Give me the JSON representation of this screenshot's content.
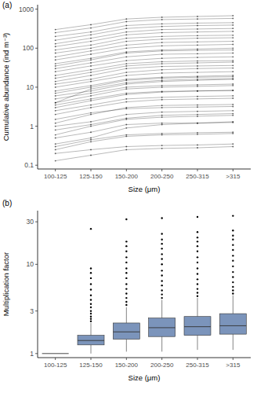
{
  "chart_data": [
    {
      "type": "line",
      "panel_label": "(a)",
      "x_label": "Size (μm)",
      "y_label": "Cumulative abundance (ind m⁻³)",
      "categories": [
        "100-125",
        "125-150",
        "150-200",
        "200-250",
        "250-315",
        ">315"
      ],
      "log": "y",
      "ylim": [
        0.08,
        1300
      ],
      "yticks": [
        0.1,
        1,
        10,
        100,
        1000
      ],
      "color": "#000000",
      "marker": "circle",
      "grid": false,
      "series": [
        {
          "values": [
            0.13,
            0.18,
            0.25,
            0.27,
            0.28,
            0.3
          ]
        },
        {
          "values": [
            0.2,
            0.25,
            0.3,
            0.32,
            0.33,
            0.35
          ]
        },
        {
          "values": [
            0.25,
            0.4,
            0.55,
            0.6,
            0.62,
            0.65
          ]
        },
        {
          "values": [
            0.3,
            0.45,
            0.6,
            0.65,
            0.68,
            0.7
          ]
        },
        {
          "values": [
            0.35,
            0.5,
            0.9,
            1.1,
            1.2,
            1.3
          ]
        },
        {
          "values": [
            0.5,
            0.7,
            1.1,
            1.2,
            1.2,
            1.25
          ]
        },
        {
          "values": [
            0.6,
            1.0,
            1.5,
            1.7,
            1.8,
            1.9
          ]
        },
        {
          "values": [
            0.8,
            1.1,
            1.6,
            1.9,
            2.0,
            2.1
          ]
        },
        {
          "values": [
            1.0,
            1.3,
            2.0,
            2.3,
            2.4,
            2.5
          ]
        },
        {
          "values": [
            1.2,
            2.0,
            3.0,
            3.4,
            3.5,
            3.6
          ]
        },
        {
          "values": [
            1.5,
            2.2,
            2.8,
            3.0,
            3.1,
            3.2
          ]
        },
        {
          "values": [
            2,
            3,
            4.2,
            4.8,
            5,
            5.2
          ]
        },
        {
          "values": [
            2.5,
            3.5,
            5,
            5.5,
            5.8,
            6
          ]
        },
        {
          "values": [
            3,
            4.5,
            6.5,
            7.5,
            8,
            8.3
          ]
        },
        {
          "values": [
            3.5,
            5,
            7,
            7.8,
            8,
            8.2
          ]
        },
        {
          "values": [
            4,
            6,
            9,
            10,
            10.5,
            11
          ]
        },
        {
          "values": [
            4,
            9,
            13,
            15,
            16,
            16.5
          ]
        },
        {
          "values": [
            5,
            7,
            10,
            11,
            11.5,
            12
          ]
        },
        {
          "values": [
            6,
            8,
            12,
            14,
            15,
            16
          ]
        },
        {
          "values": [
            7,
            10,
            15,
            17,
            18,
            18.5
          ]
        },
        {
          "values": [
            8,
            11,
            16,
            18,
            19,
            20
          ]
        },
        {
          "values": [
            10,
            14,
            20,
            23,
            24,
            25
          ]
        },
        {
          "values": [
            12,
            16,
            24,
            28,
            30,
            31
          ]
        },
        {
          "values": [
            14,
            20,
            30,
            34,
            35,
            36
          ]
        },
        {
          "values": [
            17,
            24,
            35,
            40,
            42,
            44
          ]
        },
        {
          "values": [
            20,
            28,
            40,
            45,
            47,
            48
          ]
        },
        {
          "values": [
            25,
            35,
            48,
            55,
            58,
            60
          ]
        },
        {
          "values": [
            30,
            42,
            60,
            70,
            72,
            75
          ]
        },
        {
          "values": [
            35,
            50,
            75,
            85,
            88,
            90
          ]
        },
        {
          "values": [
            40,
            55,
            80,
            90,
            95,
            100
          ]
        },
        {
          "values": [
            50,
            70,
            100,
            115,
            120,
            125
          ]
        },
        {
          "values": [
            60,
            85,
            120,
            140,
            145,
            150
          ]
        },
        {
          "values": [
            75,
            100,
            150,
            170,
            180,
            185
          ]
        },
        {
          "values": [
            90,
            120,
            180,
            200,
            210,
            215
          ]
        },
        {
          "values": [
            110,
            150,
            220,
            250,
            260,
            270
          ]
        },
        {
          "values": [
            130,
            180,
            260,
            300,
            310,
            320
          ]
        },
        {
          "values": [
            160,
            220,
            320,
            360,
            380,
            390
          ]
        },
        {
          "values": [
            200,
            260,
            380,
            420,
            440,
            450
          ]
        },
        {
          "values": [
            250,
            330,
            480,
            540,
            560,
            580
          ]
        },
        {
          "values": [
            300,
            400,
            560,
            620,
            650,
            680
          ]
        }
      ]
    },
    {
      "type": "box",
      "panel_label": "(b)",
      "x_label": "Size (μm)",
      "y_label": "Multiplication factor",
      "categories": [
        "100-125",
        "125-150",
        "150-200",
        "200-250",
        "250-315",
        ">315"
      ],
      "log": "y",
      "ylim": [
        0.9,
        40
      ],
      "yticks": [
        1,
        3,
        10,
        30
      ],
      "color": "#7b94bb",
      "grid": false,
      "boxes": [
        {
          "min": 1,
          "q1": 1,
          "median": 1,
          "q3": 1,
          "max": 1,
          "outliers": []
        },
        {
          "min": 1.0,
          "q1": 1.25,
          "median": 1.4,
          "q3": 1.6,
          "max": 2.2,
          "outliers": [
            2.3,
            2.45,
            2.6,
            2.8,
            3.0,
            3.3,
            3.6,
            4.0,
            4.5,
            5.2,
            6,
            7,
            8,
            9,
            25
          ]
        },
        {
          "min": 1.05,
          "q1": 1.45,
          "median": 1.75,
          "q3": 2.2,
          "max": 3.3,
          "outliers": [
            3.5,
            3.8,
            4.2,
            4.7,
            5.3,
            6,
            7,
            8,
            9,
            10.5,
            12,
            14,
            16,
            18,
            32
          ]
        },
        {
          "min": 1.05,
          "q1": 1.55,
          "median": 1.95,
          "q3": 2.5,
          "max": 4.0,
          "outliers": [
            4.2,
            4.6,
            5.1,
            5.8,
            6.5,
            7.5,
            8.5,
            10,
            11.5,
            13,
            15,
            17,
            19,
            22,
            33
          ]
        },
        {
          "min": 1.1,
          "q1": 1.6,
          "median": 2.0,
          "q3": 2.6,
          "max": 4.2,
          "outliers": [
            4.4,
            4.8,
            5.3,
            6,
            6.8,
            7.8,
            9,
            10.5,
            12,
            14,
            16,
            18,
            20,
            23,
            34
          ]
        },
        {
          "min": 1.1,
          "q1": 1.65,
          "median": 2.05,
          "q3": 2.8,
          "max": 4.5,
          "outliers": [
            4.7,
            5.1,
            5.6,
            6.3,
            7.2,
            8.2,
            9.5,
            11,
            12.5,
            14.5,
            16.5,
            19,
            21,
            24,
            35
          ]
        }
      ]
    }
  ]
}
